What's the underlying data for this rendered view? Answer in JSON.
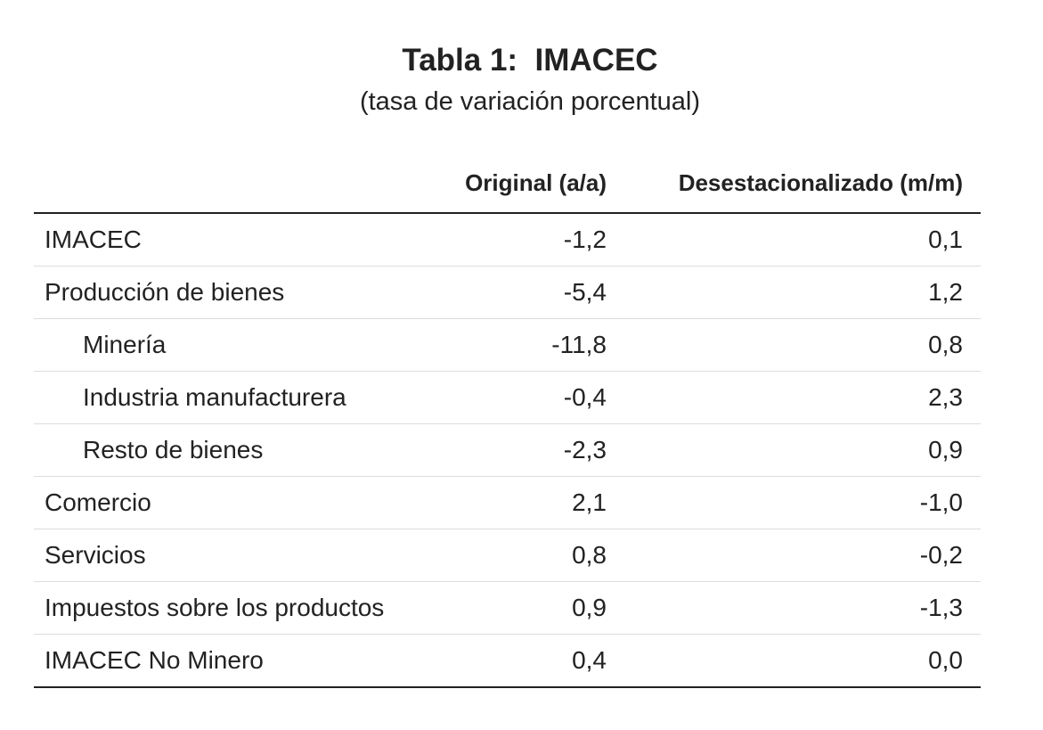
{
  "title": "Tabla 1:  IMACEC",
  "subtitle": "(tasa de variación porcentual)",
  "table": {
    "columns": [
      "Original (a/a)",
      "Desestacionalizado (m/m)"
    ],
    "rows": [
      [
        "IMACEC",
        "-1,2",
        "0,1"
      ],
      [
        "Producción de bienes",
        "-5,4",
        "1,2"
      ],
      [
        "Minería",
        "-11,8",
        "0,8"
      ],
      [
        "Industria manufacturera",
        "-0,4",
        "2,3"
      ],
      [
        "Resto de bienes",
        "-2,3",
        "0,9"
      ],
      [
        "Comercio",
        "2,1",
        "-1,0"
      ],
      [
        "Servicios",
        "0,8",
        "-0,2"
      ],
      [
        "Impuestos sobre los productos",
        "0,9",
        "-1,3"
      ],
      [
        "IMACEC No Minero",
        "0,4",
        "0,0"
      ]
    ]
  }
}
